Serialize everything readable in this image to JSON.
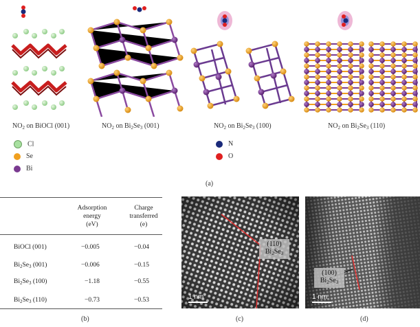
{
  "panel_a": {
    "captions": [
      {
        "pre": "NO",
        "s1": "2",
        "mid": " on BiOCl (001)",
        "s2": "",
        "post": ""
      },
      {
        "pre": "NO",
        "s1": "2",
        "mid": " on Bi",
        "s2": "2",
        "post": "Se",
        "s3": "3",
        "end": " (001)"
      },
      {
        "pre": "NO",
        "s1": "2",
        "mid": " on Bi",
        "s2": "2",
        "post": "Se",
        "s3": "3",
        "end": " (100)"
      },
      {
        "pre": "NO",
        "s1": "2",
        "mid": " on Bi",
        "s2": "2",
        "post": "Se",
        "s3": "3",
        "end": " (110)"
      }
    ],
    "legend_left": [
      {
        "label": "Cl",
        "color": "#a8e0a0"
      },
      {
        "label": "Se",
        "color": "#f0a020"
      },
      {
        "label": "Bi",
        "color": "#7a3a90"
      }
    ],
    "legend_right": [
      {
        "label": "N",
        "color": "#1a2a7a"
      },
      {
        "label": "O",
        "color": "#e02020"
      }
    ],
    "label": "(a)"
  },
  "panel_b": {
    "label": "(b)",
    "headers": [
      [
        "Adsorption",
        "energy",
        "(eV)"
      ],
      [
        "Charge",
        "transferred",
        "(e)"
      ]
    ],
    "rows": [
      {
        "name": "BiOCl (001)",
        "energy": "−0.005",
        "charge": "−0.04"
      },
      {
        "name": "Bi2Se3 (001)",
        "energy": "−0.006",
        "charge": "−0.15"
      },
      {
        "name": "Bi2Se3 (100)",
        "energy": "−1.18",
        "charge": "−0.55"
      },
      {
        "name": "Bi2Se3 (110)",
        "energy": "−0.73",
        "charge": "−0.53"
      }
    ]
  },
  "panel_c": {
    "label": "(c)",
    "scale": "1 nm",
    "plane": "(110)",
    "material": "Bi2Se3"
  },
  "panel_d": {
    "label": "(d)",
    "scale": "1 nm",
    "plane": "(100)",
    "material": "Bi2Se3"
  },
  "colors": {
    "cl": "#a8e0a0",
    "se": "#f0a020",
    "bi": "#7a3a90",
    "n": "#1a2a7a",
    "o": "#e02020",
    "red_bond": "#c81e1e",
    "line": "#e03030"
  }
}
